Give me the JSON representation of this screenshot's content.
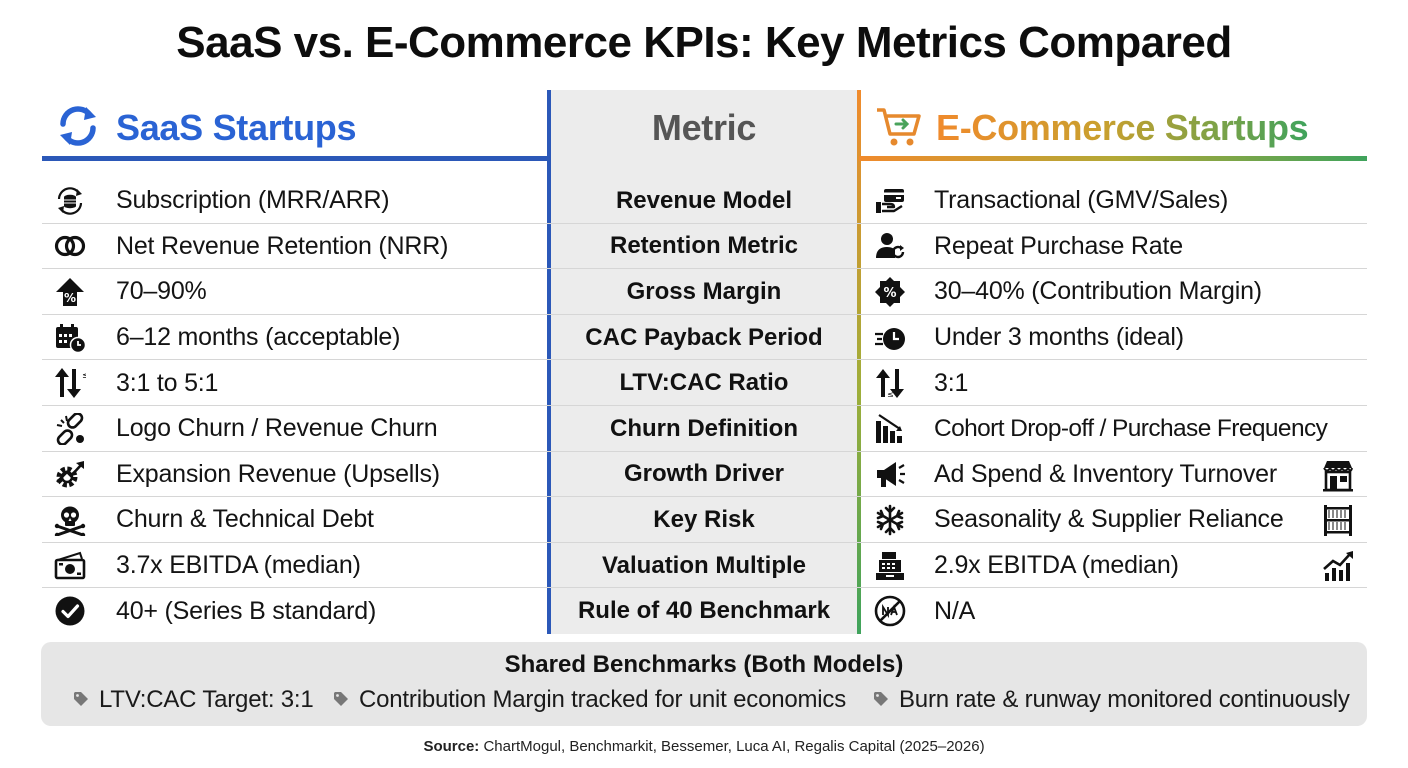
{
  "title": "SaaS vs. E-Commerce KPIs: Key Metrics Compared",
  "headers": {
    "saas": "SaaS Startups",
    "metric": "Metric",
    "ecommerce": "E-Commerce Startups"
  },
  "rows": [
    {
      "metric": "Revenue Model",
      "saas": "Subscription (MRR/ARR)",
      "saas_icon": "subscription-coins-icon",
      "ecommerce": "Transactional (GMV/Sales)",
      "ecommerce_icon": "card-payment-hand-icon"
    },
    {
      "metric": "Retention Metric",
      "saas": "Net Revenue Retention (NRR)",
      "saas_icon": "linked-rings-icon",
      "ecommerce": "Repeat Purchase Rate",
      "ecommerce_icon": "user-repeat-icon"
    },
    {
      "metric": "Gross Margin",
      "saas": "70–90%",
      "saas_icon": "percent-up-arrow-icon",
      "ecommerce": "30–40% (Contribution Margin)",
      "ecommerce_icon": "percent-badge-icon"
    },
    {
      "metric": "CAC Payback Period",
      "saas": "6–12 months (acceptable)",
      "saas_icon": "calendar-clock-icon",
      "ecommerce": "Under 3 months (ideal)",
      "ecommerce_icon": "fast-clock-icon"
    },
    {
      "metric": "LTV:CAC Ratio",
      "saas": "3:1 to 5:1",
      "saas_icon": "ratio-arrows-icon",
      "ecommerce": "3:1",
      "ecommerce_icon": "ratio-arrows-icon"
    },
    {
      "metric": "Churn Definition",
      "saas": "Logo Churn / Revenue Churn",
      "saas_icon": "broken-link-icon",
      "ecommerce": "Cohort Drop-off / Purchase Frequency",
      "ecommerce_icon": "declining-bars-icon"
    },
    {
      "metric": "Growth Driver",
      "saas": "Expansion Revenue (Upsells)",
      "saas_icon": "gear-growth-icon",
      "ecommerce": "Ad Spend & Inventory Turnover",
      "ecommerce_icon": "megaphone-icon",
      "ecommerce_extra_icon": "storefront-icon"
    },
    {
      "metric": "Key Risk",
      "saas": "Churn & Technical Debt",
      "saas_icon": "skull-crossbones-icon",
      "ecommerce": "Seasonality & Supplier Reliance",
      "ecommerce_icon": "snowflake-icon",
      "ecommerce_extra_icon": "shelving-icon"
    },
    {
      "metric": "Valuation Multiple",
      "saas": "3.7x EBITDA (median)",
      "saas_icon": "cash-bill-icon",
      "ecommerce": "2.9x EBITDA (median)",
      "ecommerce_icon": "cash-register-icon",
      "ecommerce_extra_icon": "growth-chart-icon"
    },
    {
      "metric": "Rule of 40 Benchmark",
      "saas": "40+ (Series B standard)",
      "saas_icon": "check-circle-icon",
      "ecommerce": "N/A",
      "ecommerce_icon": "not-applicable-icon"
    }
  ],
  "shared": {
    "title": "Shared Benchmarks (Both Models)",
    "items": [
      "LTV:CAC Target: 3:1",
      "Contribution Margin tracked for unit economics",
      "Burn rate & runway monitored continuously"
    ]
  },
  "source": {
    "label": "Source:",
    "text": "ChartMogul, Benchmarkit, Bessemer, Luca AI, Regalis Capital (2025–2026)"
  },
  "colors": {
    "saas_accent": "#2a63d4",
    "ecom_gradient_start": "#f08a2c",
    "ecom_gradient_end": "#3fa35c",
    "metric_column_bg": "#ececec"
  }
}
